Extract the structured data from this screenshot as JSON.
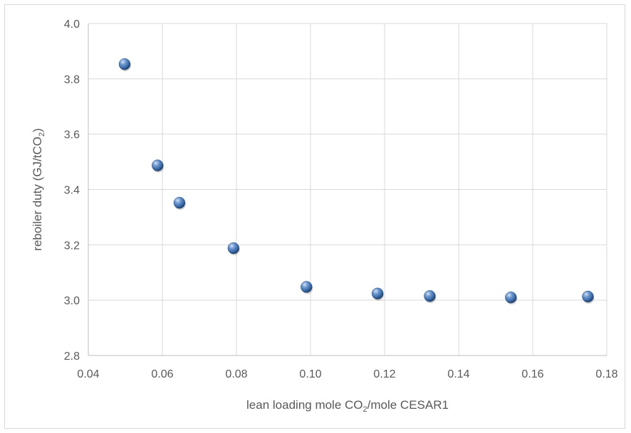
{
  "chart_data": {
    "type": "scatter",
    "title": "",
    "xlabel_parts": [
      "lean loading mole CO",
      "2",
      "/mole CESAR1"
    ],
    "ylabel_parts": [
      "reboiler duty (GJ/tCO",
      "2",
      ")"
    ],
    "xlim": [
      0.04,
      0.18
    ],
    "ylim": [
      2.8,
      4.0
    ],
    "x_ticks": [
      0.04,
      0.06,
      0.08,
      0.1,
      0.12,
      0.14,
      0.16,
      0.18
    ],
    "x_tick_labels": [
      "0.04",
      "0.06",
      "0.08",
      "0.10",
      "0.12",
      "0.14",
      "0.16",
      "0.18"
    ],
    "y_ticks": [
      2.8,
      3.0,
      3.2,
      3.4,
      3.6,
      3.8,
      4.0
    ],
    "y_tick_labels": [
      "2.8",
      "3.0",
      "3.2",
      "3.4",
      "3.6",
      "3.8",
      "4.0"
    ],
    "grid": true,
    "marker_color": "#4f81bd",
    "series": [
      {
        "x": [
          0.0498,
          0.0587,
          0.0646,
          0.0792,
          0.0989,
          0.1181,
          0.1322,
          0.1541,
          0.1749
        ],
        "y": [
          3.853,
          3.487,
          3.352,
          3.188,
          3.048,
          3.024,
          3.015,
          3.01,
          3.013
        ]
      }
    ]
  }
}
